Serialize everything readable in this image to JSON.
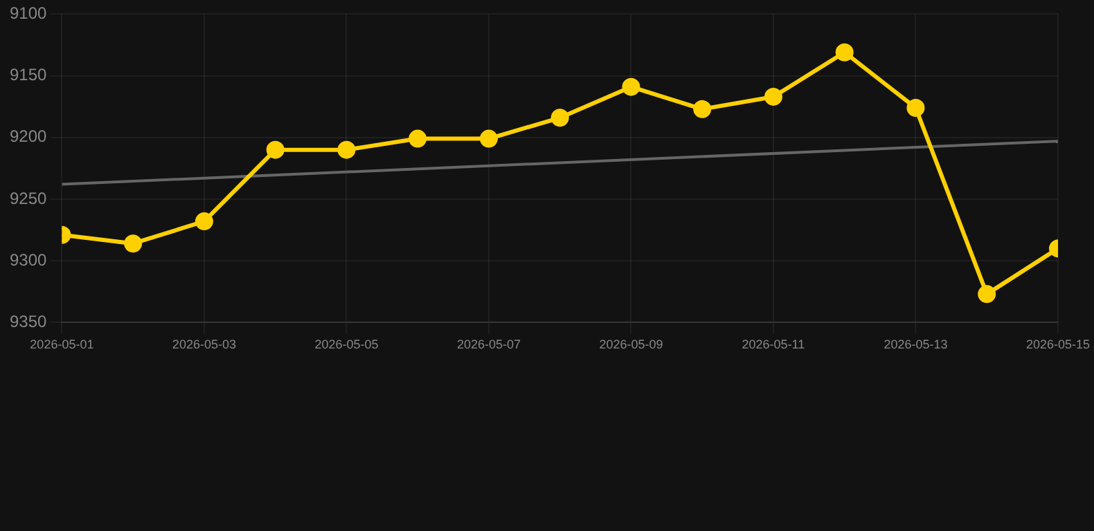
{
  "chart_data": {
    "type": "line",
    "x": [
      "2026-05-01",
      "2026-05-02",
      "2026-05-03",
      "2026-05-04",
      "2026-05-05",
      "2026-05-06",
      "2026-05-07",
      "2026-05-08",
      "2026-05-09",
      "2026-05-10",
      "2026-05-11",
      "2026-05-12",
      "2026-05-13",
      "2026-05-14",
      "2026-05-15"
    ],
    "series": [
      {
        "color": "#ffd000",
        "marker": "circle",
        "values": [
          9279,
          9286,
          9268,
          9210,
          9210,
          9201,
          9201,
          9184,
          9159,
          9177,
          9167,
          9131,
          9176,
          9327,
          9290
        ]
      },
      {
        "type": "line",
        "color": "#666666",
        "marker": "none",
        "x": [
          "2026-05-01",
          "2026-05-15"
        ],
        "values": [
          9238,
          9203
        ]
      }
    ],
    "xlim": [
      "2026-05-01",
      "2026-05-15"
    ],
    "xticks": [
      "2026-05-01",
      "2026-05-03",
      "2026-05-05",
      "2026-05-07",
      "2026-05-09",
      "2026-05-11",
      "2026-05-13",
      "2026-05-15"
    ],
    "ylim": [
      9350,
      9100
    ],
    "yticks": [
      9100,
      9150,
      9200,
      9250,
      9300,
      9350
    ],
    "grid": true
  }
}
